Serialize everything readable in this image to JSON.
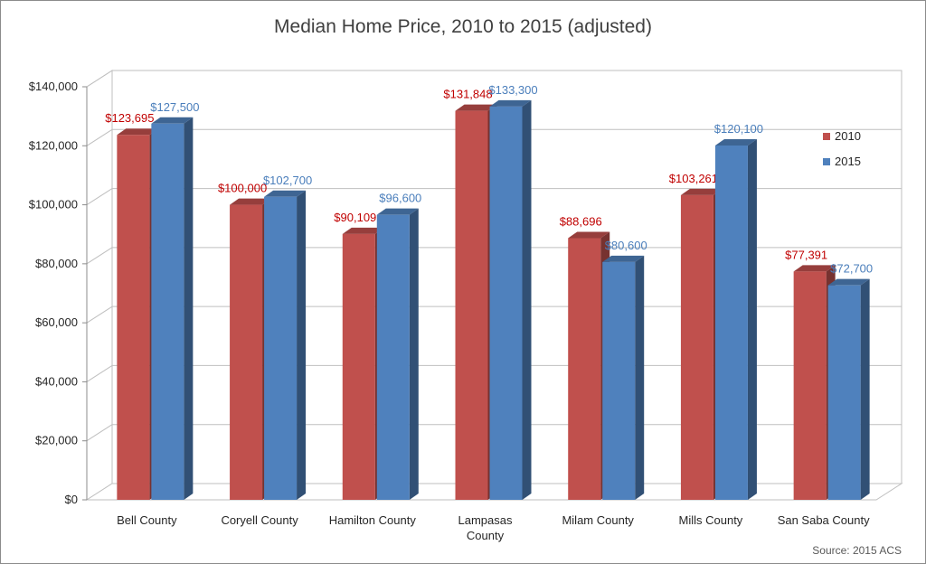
{
  "chart_data": {
    "type": "bar",
    "title": "Median Home Price, 2010 to 2015 (adjusted)",
    "categories": [
      [
        "Bell County"
      ],
      [
        "Coryell County"
      ],
      [
        "Hamilton County"
      ],
      [
        "Lampasas",
        "County"
      ],
      [
        "Milam County"
      ],
      [
        "Mills County"
      ],
      [
        "San Saba County"
      ]
    ],
    "series": [
      {
        "name": "2010",
        "color": "#c0504d",
        "label_color": "#c00000",
        "values": [
          123695,
          100000,
          90109,
          131848,
          88696,
          103261,
          77391
        ],
        "labels": [
          "$123,695",
          "$100,000",
          "$90,109",
          "$131,848",
          "$88,696",
          "$103,261",
          "$77,391"
        ]
      },
      {
        "name": "2015",
        "color": "#4f81bd",
        "label_color": "#4a7ebb",
        "values": [
          127500,
          102700,
          96600,
          133300,
          80600,
          120100,
          72700
        ],
        "labels": [
          "$127,500",
          "$102,700",
          "$96,600",
          "$133,300",
          "$80,600",
          "$120,100",
          "$72,700"
        ]
      }
    ],
    "ylim": [
      0,
      140000
    ],
    "y_ticks": [
      {
        "value": 0,
        "label": "$0"
      },
      {
        "value": 20000,
        "label": "$20,000"
      },
      {
        "value": 40000,
        "label": "$40,000"
      },
      {
        "value": 60000,
        "label": "$60,000"
      },
      {
        "value": 80000,
        "label": "$80,000"
      },
      {
        "value": 100000,
        "label": "$100,000"
      },
      {
        "value": 120000,
        "label": "$120,000"
      },
      {
        "value": 140000,
        "label": "$140,000"
      }
    ],
    "grid": true,
    "legend_position": "right",
    "source": "Source: 2015 ACS"
  }
}
